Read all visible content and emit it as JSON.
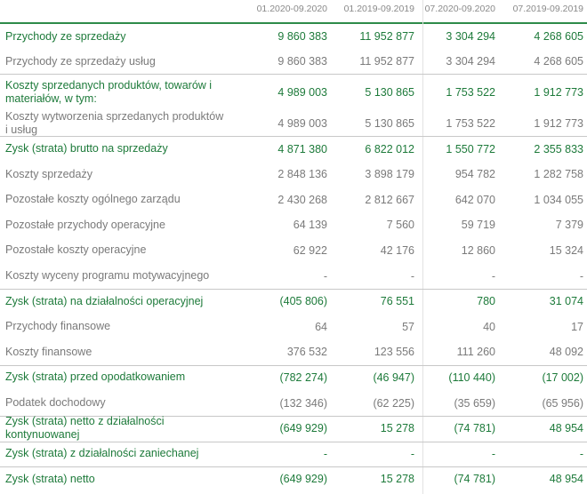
{
  "table": {
    "columns": [
      "01.2020-09.2020",
      "01.2019-09.2019",
      "07.2020-09.2020",
      "07.2019-09.2019"
    ],
    "rows": [
      {
        "label": "Przychody ze sprzedaży",
        "bold": true,
        "values": [
          "9 860 383",
          "11 952 877",
          "3 304 294",
          "4 268 605"
        ]
      },
      {
        "label": "Przychody ze sprzedaży usług",
        "bold": false,
        "values": [
          "9 860 383",
          "11 952 877",
          "3 304 294",
          "4 268 605"
        ]
      },
      {
        "label": "Koszty sprzedanych produktów, towarów i materiałów, w tym:",
        "bold": true,
        "values": [
          "4 989 003",
          "5 130 865",
          "1 753 522",
          "1 912 773"
        ]
      },
      {
        "label": "Koszty wytworzenia sprzedanych produktów i usług",
        "bold": false,
        "values": [
          "4 989 003",
          "5 130 865",
          "1 753 522",
          "1 912 773"
        ]
      },
      {
        "label": "Zysk (strata) brutto na sprzedaży",
        "bold": true,
        "values": [
          "4 871 380",
          "6 822 012",
          "1 550 772",
          "2 355 833"
        ]
      },
      {
        "label": "Koszty sprzedaży",
        "bold": false,
        "values": [
          "2 848 136",
          "3 898 179",
          "954 782",
          "1 282 758"
        ]
      },
      {
        "label": "Pozostałe koszty ogólnego zarządu",
        "bold": false,
        "values": [
          "2 430 268",
          "2 812 667",
          "642 070",
          "1 034 055"
        ]
      },
      {
        "label": "Pozostałe przychody operacyjne",
        "bold": false,
        "values": [
          "64 139",
          "7 560",
          "59 719",
          "7 379"
        ]
      },
      {
        "label": "Pozostałe koszty operacyjne",
        "bold": false,
        "values": [
          "62 922",
          "42 176",
          "12 860",
          "15 324"
        ]
      },
      {
        "label": "Koszty wyceny programu motywacyjnego",
        "bold": false,
        "values": [
          "-",
          "-",
          "-",
          "-"
        ]
      },
      {
        "label": "Zysk (strata) na działalności operacyjnej",
        "bold": true,
        "values": [
          "(405 806)",
          "76 551",
          "780",
          "31 074"
        ]
      },
      {
        "label": "Przychody finansowe",
        "bold": false,
        "values": [
          "64",
          "57",
          "40",
          "17"
        ]
      },
      {
        "label": "Koszty finansowe",
        "bold": false,
        "values": [
          "376 532",
          "123 556",
          "111 260",
          "48 092"
        ]
      },
      {
        "label": "Zysk (strata) przed opodatkowaniem",
        "bold": true,
        "values": [
          "(782 274)",
          "(46 947)",
          "(110 440)",
          "(17 002)"
        ]
      },
      {
        "label": "Podatek dochodowy",
        "bold": false,
        "values": [
          "(132 346)",
          "(62 225)",
          "(35 659)",
          "(65 956)"
        ]
      },
      {
        "label": "Zysk (strata) netto z działalności kontynuowanej",
        "bold": true,
        "values": [
          "(649 929)",
          "15 278",
          "(74 781)",
          "48 954"
        ]
      },
      {
        "label": "Zysk (strata) z działalności zaniechanej",
        "bold": true,
        "values": [
          "-",
          "-",
          "-",
          "-"
        ]
      },
      {
        "label": "Zysk (strata) netto",
        "bold": true,
        "values": [
          "(649 929)",
          "15 278",
          "(74 781)",
          "48 954"
        ]
      }
    ]
  }
}
